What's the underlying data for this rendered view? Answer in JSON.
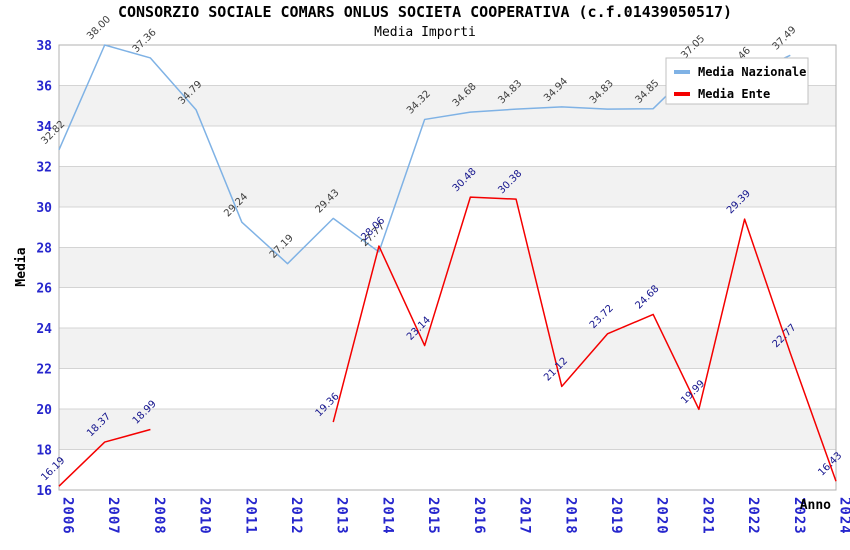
{
  "title": "CONSORZIO SOCIALE COMARS ONLUS SOCIETA COOPERATIVA (c.f.01439050517)",
  "subtitle": "Media Importi",
  "chart_data": {
    "type": "line",
    "categories": [
      "2006",
      "2007",
      "2008",
      "2010",
      "2011",
      "2012",
      "2013",
      "2014",
      "2015",
      "2016",
      "2017",
      "2018",
      "2019",
      "2020",
      "2021",
      "2022",
      "2023",
      "2024"
    ],
    "series": [
      {
        "name": "Media Nazionale",
        "color": "#7fb2e5",
        "label_color": "#404040",
        "values": [
          32.82,
          38.0,
          37.36,
          34.79,
          29.24,
          27.19,
          29.43,
          27.77,
          34.32,
          34.68,
          34.83,
          34.94,
          34.83,
          34.85,
          37.05,
          36.46,
          37.49,
          null
        ],
        "point_labels": [
          "32.82",
          "38.00",
          "37.36",
          "34.79",
          "29.24",
          "27.19",
          "29.43",
          "27.77",
          "34.32",
          "34.68",
          "34.83",
          "34.94",
          "34.83",
          "34.85",
          "37.05",
          "36.46",
          "37.49",
          null
        ]
      },
      {
        "name": "Media Ente",
        "color": "#f40000",
        "label_color": "#15158d",
        "values": [
          16.19,
          18.37,
          18.99,
          null,
          null,
          null,
          19.36,
          28.06,
          23.14,
          30.48,
          30.38,
          21.12,
          23.72,
          24.68,
          19.99,
          29.39,
          22.77,
          16.43
        ],
        "point_labels": [
          "16.19",
          "18.37",
          "18.99",
          null,
          null,
          null,
          "19.36",
          "28.06",
          "23.14",
          "30.48",
          "30.38",
          "21.12",
          "23.72",
          "24.68",
          "19.99",
          "29.39",
          "22.77",
          "16.43"
        ]
      }
    ],
    "xlabel": "Anno",
    "ylabel": "Media",
    "ylim": [
      16,
      38
    ],
    "yticks": [
      16,
      18,
      20,
      22,
      24,
      26,
      28,
      30,
      32,
      34,
      36,
      38
    ],
    "grid": true,
    "legend_position": "top-right",
    "band_gray": "#f2f2f2",
    "grid_color": "#d4d4d4",
    "border_color": "#b0b0b0",
    "tick_label_color": "#2626cd"
  },
  "legend": {
    "items": [
      {
        "label": "Media Nazionale",
        "color": "#7fb2e5"
      },
      {
        "label": "Media Ente",
        "color": "#f40000"
      }
    ]
  }
}
